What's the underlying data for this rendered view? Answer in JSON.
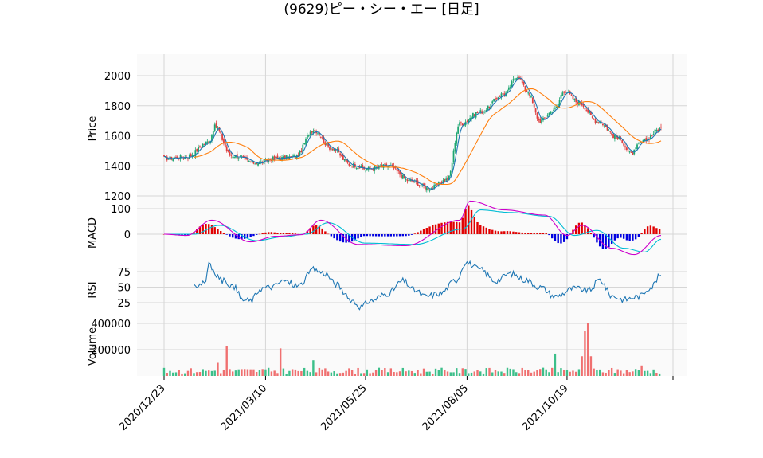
{
  "chart_data": {
    "title": "(9629)ピー・シー・エー [日足]",
    "type": "candlestick",
    "x_tick_labels": [
      "2020/12/23",
      "2021/03/10",
      "2021/05/25",
      "2021/08/05",
      "2021/10/19"
    ],
    "panels": [
      {
        "name": "price",
        "ylabel": "Price",
        "ylim": [
          1190,
          2160
        ],
        "y_ticks": [
          1200,
          1400,
          1600,
          1800,
          2000
        ],
        "close_anchors": [
          [
            0,
            1450
          ],
          [
            15,
            1460
          ],
          [
            30,
            1560
          ],
          [
            34,
            1660
          ],
          [
            45,
            1470
          ],
          [
            62,
            1420
          ],
          [
            75,
            1450
          ],
          [
            88,
            1460
          ],
          [
            100,
            1640
          ],
          [
            112,
            1520
          ],
          [
            125,
            1410
          ],
          [
            135,
            1380
          ],
          [
            150,
            1400
          ],
          [
            165,
            1300
          ],
          [
            178,
            1250
          ],
          [
            190,
            1310
          ],
          [
            198,
            1680
          ],
          [
            212,
            1760
          ],
          [
            228,
            1880
          ],
          [
            237,
            2000
          ],
          [
            243,
            1900
          ],
          [
            252,
            1700
          ],
          [
            262,
            1780
          ],
          [
            268,
            1900
          ],
          [
            278,
            1820
          ],
          [
            290,
            1700
          ],
          [
            305,
            1580
          ],
          [
            313,
            1480
          ],
          [
            320,
            1560
          ],
          [
            333,
            1650
          ]
        ],
        "series": [
          {
            "name": "MA short",
            "color": "#1f77b4",
            "kind": "line"
          },
          {
            "name": "MA long",
            "color": "#ff7f0e",
            "kind": "line"
          }
        ]
      },
      {
        "name": "macd",
        "ylabel": "MACD",
        "ylim": [
          -95,
          125
        ],
        "y_ticks": [
          0,
          100
        ],
        "anchors_macd": [
          [
            0,
            0
          ],
          [
            15,
            -5
          ],
          [
            32,
            55
          ],
          [
            58,
            -30
          ],
          [
            75,
            -8
          ],
          [
            92,
            -2
          ],
          [
            105,
            55
          ],
          [
            130,
            -40
          ],
          [
            162,
            -45
          ],
          [
            198,
            55
          ],
          [
            205,
            130
          ],
          [
            228,
            95
          ],
          [
            255,
            75
          ],
          [
            270,
            -5
          ],
          [
            280,
            35
          ],
          [
            300,
            -55
          ],
          [
            315,
            -80
          ],
          [
            333,
            -5
          ]
        ],
        "anchors_signal": [
          [
            0,
            0
          ],
          [
            20,
            0
          ],
          [
            37,
            35
          ],
          [
            62,
            -25
          ],
          [
            80,
            -10
          ],
          [
            95,
            0
          ],
          [
            110,
            45
          ],
          [
            135,
            -35
          ],
          [
            168,
            -40
          ],
          [
            200,
            20
          ],
          [
            212,
            95
          ],
          [
            232,
            85
          ],
          [
            258,
            70
          ],
          [
            275,
            -5
          ],
          [
            290,
            15
          ],
          [
            308,
            -55
          ],
          [
            322,
            -70
          ],
          [
            333,
            -20
          ]
        ],
        "colors": {
          "macd": "#cc00cc",
          "signal": "#00bcd4",
          "hist_pos": "#e00000",
          "hist_neg": "#0000e0"
        }
      },
      {
        "name": "rsi",
        "ylabel": "RSI",
        "ylim": [
          0,
          110
        ],
        "y_ticks": [
          25,
          50,
          75
        ],
        "start_index": 20,
        "anchors": [
          [
            20,
            52
          ],
          [
            28,
            60
          ],
          [
            30,
            92
          ],
          [
            34,
            70
          ],
          [
            40,
            60
          ],
          [
            48,
            48
          ],
          [
            52,
            30
          ],
          [
            58,
            28
          ],
          [
            65,
            48
          ],
          [
            72,
            50
          ],
          [
            80,
            60
          ],
          [
            90,
            52
          ],
          [
            100,
            78
          ],
          [
            108,
            72
          ],
          [
            115,
            55
          ],
          [
            125,
            30
          ],
          [
            132,
            18
          ],
          [
            138,
            28
          ],
          [
            150,
            40
          ],
          [
            160,
            60
          ],
          [
            168,
            45
          ],
          [
            175,
            35
          ],
          [
            185,
            40
          ],
          [
            196,
            62
          ],
          [
            202,
            90
          ],
          [
            212,
            78
          ],
          [
            222,
            60
          ],
          [
            232,
            72
          ],
          [
            242,
            62
          ],
          [
            252,
            50
          ],
          [
            262,
            35
          ],
          [
            275,
            48
          ],
          [
            285,
            45
          ],
          [
            292,
            62
          ],
          [
            300,
            36
          ],
          [
            308,
            30
          ],
          [
            318,
            35
          ],
          [
            326,
            50
          ],
          [
            333,
            70
          ]
        ],
        "color": "#1f77b4"
      },
      {
        "name": "volume",
        "ylabel": "Volume",
        "ylim": [
          0,
          430000
        ],
        "y_ticks": [
          200000,
          400000
        ],
        "colors": {
          "up": "#3cbf8a",
          "down": "#f07070"
        },
        "spikes": [
          [
            11,
            160000
          ],
          [
            27,
            140000
          ],
          [
            29,
            170000
          ],
          [
            36,
            100000
          ],
          [
            42,
            230000
          ],
          [
            73,
            130000
          ],
          [
            78,
            210000
          ],
          [
            100,
            120000
          ],
          [
            195,
            160000
          ],
          [
            197,
            400000
          ],
          [
            199,
            410000
          ],
          [
            235,
            195000
          ],
          [
            262,
            170000
          ],
          [
            277,
            110000
          ],
          [
            280,
            150000
          ],
          [
            282,
            340000
          ],
          [
            284,
            400000
          ],
          [
            286,
            150000
          ],
          [
            320,
            80000
          ]
        ]
      }
    ],
    "candle_colors": {
      "up": "#1ea672",
      "down": "#e04040"
    },
    "n_days": 334
  }
}
